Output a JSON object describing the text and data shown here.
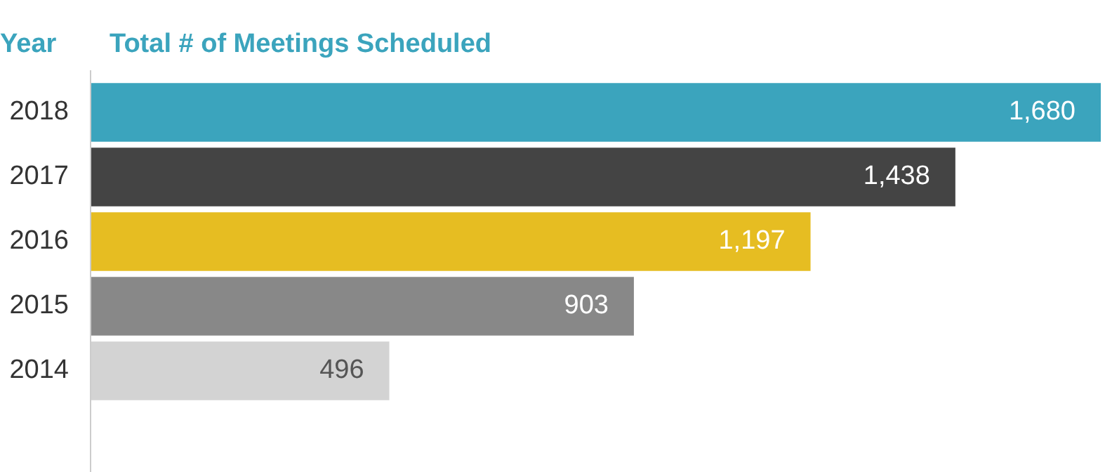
{
  "chart_data": {
    "type": "bar",
    "orientation": "horizontal",
    "title": "Total # of Meetings Scheduled",
    "ylabel": "Year",
    "categories": [
      "2018",
      "2017",
      "2016",
      "2015",
      "2014"
    ],
    "values": [
      1680,
      1438,
      1197,
      903,
      496
    ],
    "colors": [
      "#3ba4bd",
      "#444444",
      "#e6bd22",
      "#888888",
      "#d3d3d3"
    ],
    "value_labels": [
      "1,680",
      "1,438",
      "1,197",
      "903",
      "496"
    ],
    "xlim": [
      0,
      1680
    ],
    "tick_labels": "y"
  }
}
